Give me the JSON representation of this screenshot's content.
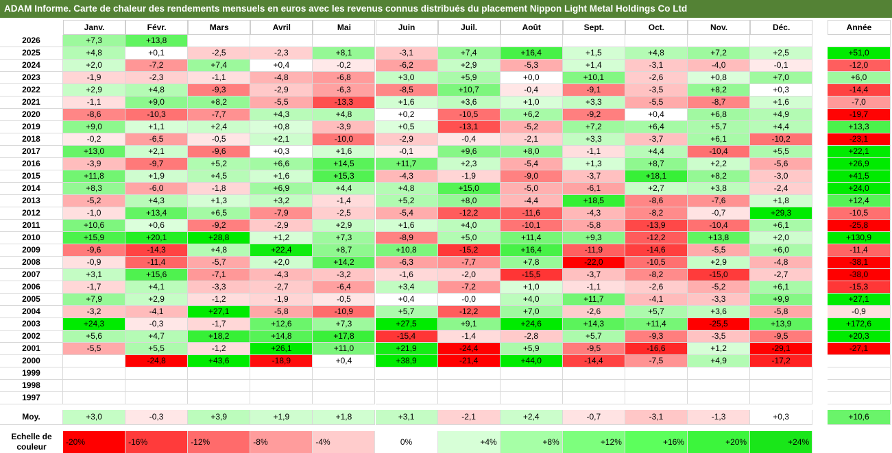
{
  "chart_data": {
    "type": "heatmap",
    "title": "ADAM Informe. Carte de chaleur des rendements mensuels en euros avec les revenus connus distribués du placement Nippon Light Metal Holdings Co Ltd",
    "columns": [
      "Janv.",
      "Févr.",
      "Mars",
      "Avril",
      "Mai",
      "Juin",
      "Juil.",
      "Août",
      "Sept.",
      "Oct.",
      "Nov.",
      "Déc."
    ],
    "year_column": "Année",
    "rows": [
      {
        "year": "2026",
        "values": [
          "+7,3",
          "+13,8",
          "",
          "",
          "",
          "",
          "",
          "",
          "",
          "",
          "",
          ""
        ],
        "annual": ""
      },
      {
        "year": "2025",
        "values": [
          "+4,8",
          "+0,1",
          "-2,5",
          "-2,3",
          "+8,1",
          "-3,1",
          "+7,4",
          "+16,4",
          "+1,5",
          "+4,8",
          "+7,2",
          "+2,5"
        ],
        "annual": "+51,0"
      },
      {
        "year": "2024",
        "values": [
          "+2,0",
          "-7,2",
          "+7,4",
          "+0,4",
          "-0,2",
          "-6,2",
          "+2,9",
          "-5,3",
          "+1,4",
          "-3,1",
          "-4,0",
          "-0,1"
        ],
        "annual": "-12,0"
      },
      {
        "year": "2023",
        "values": [
          "-1,9",
          "-2,3",
          "-1,1",
          "-4,8",
          "-6,8",
          "+3,0",
          "+5,9",
          "+0,0",
          "+10,1",
          "-2,6",
          "+0,8",
          "+7,0"
        ],
        "annual": "+6,0"
      },
      {
        "year": "2022",
        "values": [
          "+2,9",
          "+4,8",
          "-9,3",
          "-2,9",
          "-6,3",
          "-8,5",
          "+10,7",
          "-0,4",
          "-9,1",
          "-3,5",
          "+8,2",
          "+0,3"
        ],
        "annual": "-14,4"
      },
      {
        "year": "2021",
        "values": [
          "-1,1",
          "+9,0",
          "+8,2",
          "-5,5",
          "-13,3",
          "+1,6",
          "+3,6",
          "+1,0",
          "+3,3",
          "-5,5",
          "-8,7",
          "+1,6"
        ],
        "annual": "-7,0"
      },
      {
        "year": "2020",
        "values": [
          "-8,6",
          "-10,3",
          "-7,7",
          "+4,3",
          "+4,8",
          "+0,2",
          "-10,5",
          "+6,2",
          "-9,2",
          "+0,4",
          "+6,8",
          "+4,9"
        ],
        "annual": "-19,7"
      },
      {
        "year": "2019",
        "values": [
          "+9,0",
          "+1,1",
          "+2,4",
          "+0,8",
          "-3,9",
          "+0,5",
          "-13,1",
          "-5,2",
          "+7,2",
          "+6,4",
          "+5,7",
          "+4,4"
        ],
        "annual": "+13,3"
      },
      {
        "year": "2018",
        "values": [
          "-0,2",
          "-6,5",
          "-0,5",
          "+2,1",
          "-10,0",
          "-2,9",
          "-0,4",
          "-2,1",
          "+3,3",
          "-3,7",
          "+6,1",
          "-10,2"
        ],
        "annual": "-23,1"
      },
      {
        "year": "2017",
        "values": [
          "+13,0",
          "+2,1",
          "-9,6",
          "+0,3",
          "+1,6",
          "-0,1",
          "+9,6",
          "+8,0",
          "-1,1",
          "+4,4",
          "-10,4",
          "+5,5"
        ],
        "annual": "+22,1"
      },
      {
        "year": "2016",
        "values": [
          "-3,9",
          "-9,7",
          "+5,2",
          "+6,6",
          "+14,5",
          "+11,7",
          "+2,3",
          "-5,4",
          "+1,3",
          "+8,7",
          "+2,2",
          "-5,6"
        ],
        "annual": "+26,9"
      },
      {
        "year": "2015",
        "values": [
          "+11,8",
          "+1,9",
          "+4,5",
          "+1,6",
          "+15,3",
          "-4,3",
          "-1,9",
          "-9,0",
          "-3,7",
          "+18,1",
          "+8,2",
          "-3,0"
        ],
        "annual": "+41,5"
      },
      {
        "year": "2014",
        "values": [
          "+8,3",
          "-6,0",
          "-1,8",
          "+6,9",
          "+4,4",
          "+4,8",
          "+15,0",
          "-5,0",
          "-6,1",
          "+2,7",
          "+3,8",
          "-2,4"
        ],
        "annual": "+24,0"
      },
      {
        "year": "2013",
        "values": [
          "-5,2",
          "+4,3",
          "+1,3",
          "+3,2",
          "-1,4",
          "+5,2",
          "+8,0",
          "-4,4",
          "+18,5",
          "-8,6",
          "-7,6",
          "+1,8"
        ],
        "annual": "+12,4"
      },
      {
        "year": "2012",
        "values": [
          "-1,0",
          "+13,4",
          "+6,5",
          "-7,9",
          "-2,5",
          "-5,4",
          "-12,2",
          "-11,6",
          "-4,3",
          "-8,2",
          "-0,7",
          "+29,3"
        ],
        "annual": "-10,5"
      },
      {
        "year": "2011",
        "values": [
          "+10,6",
          "+0,6",
          "-9,2",
          "-2,9",
          "+2,9",
          "+1,6",
          "+4,0",
          "-10,1",
          "-5,8",
          "-13,9",
          "-10,4",
          "+6,1"
        ],
        "annual": "-25,8"
      },
      {
        "year": "2010",
        "values": [
          "+15,9",
          "+20,1",
          "+28,8",
          "+1,2",
          "+7,3",
          "-8,9",
          "+5,0",
          "+11,4",
          "+9,3",
          "-12,2",
          "+13,8",
          "+2,0"
        ],
        "annual": "+130,9"
      },
      {
        "year": "2009",
        "values": [
          "-9,6",
          "-14,3",
          "+4,8",
          "+22,4",
          "+8,7",
          "+10,8",
          "-15,2",
          "+16,4",
          "-11,9",
          "-14,6",
          "-5,5",
          "+6,0"
        ],
        "annual": "-11,4"
      },
      {
        "year": "2008",
        "values": [
          "-0,9",
          "-11,4",
          "-5,7",
          "+2,0",
          "+14,2",
          "-6,3",
          "-7,7",
          "+7,8",
          "-22,0",
          "-10,5",
          "+2,9",
          "-4,8"
        ],
        "annual": "-38,1"
      },
      {
        "year": "2007",
        "values": [
          "+3,1",
          "+15,6",
          "-7,1",
          "-4,3",
          "-3,2",
          "-1,6",
          "-2,0",
          "-15,5",
          "-3,7",
          "-8,2",
          "-15,0",
          "-2,7"
        ],
        "annual": "-38,0"
      },
      {
        "year": "2006",
        "values": [
          "-1,7",
          "+4,1",
          "-3,3",
          "-2,7",
          "-6,4",
          "+3,4",
          "-7,2",
          "+1,0",
          "-1,1",
          "-2,6",
          "-5,2",
          "+6,1"
        ],
        "annual": "-15,3"
      },
      {
        "year": "2005",
        "values": [
          "+7,9",
          "+2,9",
          "-1,2",
          "-1,9",
          "-0,5",
          "+0,4",
          "-0,0",
          "+4,0",
          "+11,7",
          "-4,1",
          "-3,3",
          "+9,9"
        ],
        "annual": "+27,1"
      },
      {
        "year": "2004",
        "values": [
          "-3,2",
          "-4,1",
          "+27,1",
          "-5,8",
          "-10,9",
          "+5,7",
          "-12,2",
          "+7,0",
          "-2,6",
          "+5,7",
          "+3,6",
          "-5,8"
        ],
        "annual": "-0,9"
      },
      {
        "year": "2003",
        "values": [
          "+24,3",
          "-0,3",
          "-1,7",
          "+12,6",
          "+7,3",
          "+27,5",
          "+9,1",
          "+24,6",
          "+14,3",
          "+11,4",
          "-25,5",
          "+13,9"
        ],
        "annual": "+172,6"
      },
      {
        "year": "2002",
        "values": [
          "+5,6",
          "+4,7",
          "+18,2",
          "+14,8",
          "+17,8",
          "-15,4",
          "-1,4",
          "-2,8",
          "+5,7",
          "-9,3",
          "-3,5",
          "-9,5"
        ],
        "annual": "+20,3"
      },
      {
        "year": "2001",
        "values": [
          "-5,5",
          "+5,5",
          "-1,2",
          "+26,1",
          "+11,0",
          "+21,9",
          "-24,4",
          "+5,9",
          "-9,5",
          "-16,6",
          "+1,2",
          "-29,1"
        ],
        "annual": "-27,1"
      },
      {
        "year": "2000",
        "values": [
          "",
          "-24,8",
          "+43,6",
          "-18,9",
          "+0,4",
          "+38,9",
          "-21,4",
          "+44,0",
          "-14,4",
          "-7,5",
          "+4,9",
          "-17,2"
        ],
        "annual": ""
      },
      {
        "year": "1999",
        "values": [
          "",
          "",
          "",
          "",
          "",
          "",
          "",
          "",
          "",
          "",
          "",
          ""
        ],
        "annual": ""
      },
      {
        "year": "1998",
        "values": [
          "",
          "",
          "",
          "",
          "",
          "",
          "",
          "",
          "",
          "",
          "",
          ""
        ],
        "annual": ""
      },
      {
        "year": "1997",
        "values": [
          "",
          "",
          "",
          "",
          "",
          "",
          "",
          "",
          "",
          "",
          "",
          ""
        ],
        "annual": ""
      }
    ],
    "average": {
      "label": "Moy.",
      "values": [
        "+3,0",
        "-0,3",
        "+3,9",
        "+1,9",
        "+1,8",
        "+3,1",
        "-2,1",
        "+2,4",
        "-0,7",
        "-3,1",
        "-1,3",
        "+0,3"
      ],
      "annual": "+10,6"
    },
    "color_scale": {
      "label": "Echelle de couleur",
      "stops": [
        "-20%",
        "-16%",
        "-12%",
        "-8%",
        "-4%",
        "0%",
        "+4%",
        "+8%",
        "+12%",
        "+16%",
        "+20%",
        "+24%"
      ],
      "colors": [
        "#ff0000",
        "#ff3b3b",
        "#ff6b6b",
        "#ff9c9c",
        "#ffcccc",
        "#ffffff",
        "#d7ffd7",
        "#a6ffa6",
        "#7dff7d",
        "#5cff5c",
        "#3cf53c",
        "#19e619"
      ]
    }
  }
}
